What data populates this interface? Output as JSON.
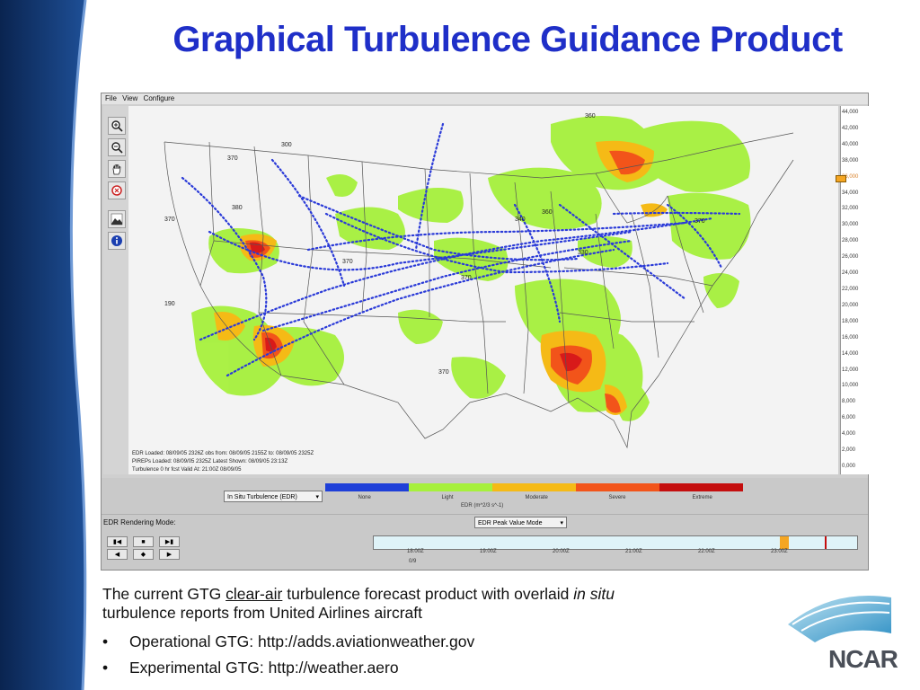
{
  "slide": {
    "title": "Graphical Turbulence Guidance Product"
  },
  "app": {
    "menu": [
      "File",
      "View",
      "Configure"
    ],
    "toolbar_icons": [
      "zoom-in-icon",
      "zoom-out-icon",
      "pan-hand-icon",
      "reset-icon",
      "terrain-icon",
      "info-icon"
    ],
    "altitude_ticks": [
      "44,000",
      "42,000",
      "40,000",
      "38,000",
      "36,000",
      "34,000",
      "32,000",
      "30,000",
      "28,000",
      "26,000",
      "24,000",
      "22,000",
      "20,000",
      "18,000",
      "16,000",
      "14,000",
      "12,000",
      "10,000",
      "8,000",
      "6,000",
      "4,000",
      "2,000",
      "0,000"
    ],
    "selected_altitude": "36,000",
    "map_info": [
      "EDR Loaded: 08/09/05 2326Z obs from: 08/09/05 2155Z to: 08/09/05 2325Z",
      "PIREPs Loaded: 08/09/05 2325Z Latest Shown: 08/09/05 23:13Z",
      "Turbulence 0 hr fcst Valid At: 21:00Z 08/09/05"
    ],
    "flight_level_labels": [
      "360",
      "300",
      "370",
      "380",
      "370",
      "190",
      "340",
      "360",
      "330",
      "370",
      "370",
      "370",
      "370"
    ],
    "legend": {
      "dropdown": "In Situ Turbulence (EDR)",
      "categories": [
        {
          "label": "None",
          "color": "#1e3fd8"
        },
        {
          "label": "Light",
          "color": "#a6f03c"
        },
        {
          "label": "Moderate",
          "color": "#f5ba16"
        },
        {
          "label": "Severe",
          "color": "#f2541a"
        },
        {
          "label": "Extreme",
          "color": "#c40e0e"
        }
      ],
      "unit": "EDR (m^2/3 s^-1)"
    },
    "render_mode": {
      "label": "EDR Rendering Mode:",
      "dropdown": "EDR Peak Value Mode"
    },
    "playback": {
      "buttons": [
        "first-frame",
        "stop",
        "last-frame",
        "step-back",
        "play",
        "step-forward"
      ]
    },
    "timeline": {
      "ticks": [
        "18:00Z",
        "19:00Z",
        "20:00Z",
        "21:00Z",
        "22:00Z",
        "23:00Z"
      ],
      "frame": "0/9"
    }
  },
  "caption": {
    "part1": "The current GTG ",
    "link": "clear-air",
    "part2": " turbulence forecast product with overlaid ",
    "italic": "in situ",
    "line2": "turbulence reports from United Airlines aircraft",
    "bullets": [
      "Operational GTG: http://adds.aviationweather.gov",
      "Experimental GTG: http://weather.aero"
    ]
  },
  "logo": {
    "text": "NCAR"
  },
  "colors": {
    "title": "#1f2fc8",
    "sidebar_dark": "#0c2a5a",
    "sidebar_mid": "#2b5fa8",
    "light_turb": "#a6f03c",
    "moderate_turb": "#f5ba16",
    "severe_turb": "#f2541a",
    "extreme_turb": "#c40e0e",
    "flight_track": "#2a3ad8"
  }
}
